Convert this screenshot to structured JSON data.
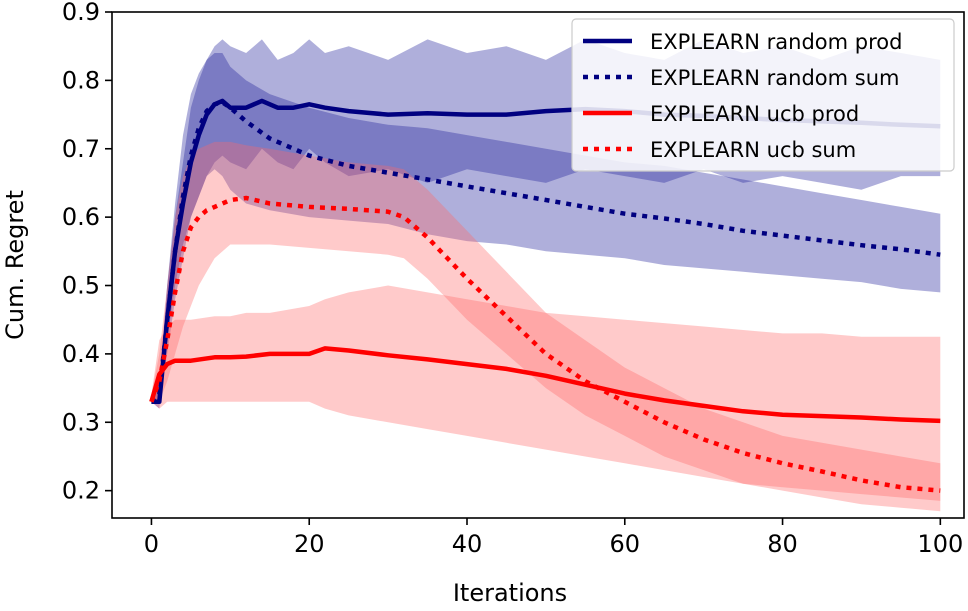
{
  "chart_data": {
    "type": "line",
    "title": "",
    "xlabel": "Iterations",
    "ylabel": "Cum. Regret",
    "xlim": [
      -5,
      103
    ],
    "ylim": [
      0.16,
      0.9
    ],
    "xticks": [
      0,
      20,
      40,
      60,
      80,
      100
    ],
    "yticks": [
      0.2,
      0.3,
      0.4,
      0.5,
      0.6,
      0.7,
      0.8,
      0.9
    ],
    "xtick_labels": [
      "0",
      "20",
      "40",
      "60",
      "80",
      "100"
    ],
    "ytick_labels": [
      "0.2",
      "0.3",
      "0.4",
      "0.5",
      "0.6",
      "0.7",
      "0.8",
      "0.9"
    ],
    "grid": false,
    "legend_position": "top-right",
    "series": [
      {
        "name": "EXPLEARN random prod",
        "color": "#000080",
        "style": "solid",
        "band_color": "#1a1a99",
        "x": [
          0,
          1,
          2,
          3,
          4,
          5,
          6,
          7,
          8,
          9,
          10,
          12,
          14,
          16,
          18,
          20,
          22,
          25,
          30,
          35,
          40,
          45,
          50,
          55,
          60,
          65,
          70,
          75,
          80,
          85,
          90,
          95,
          100
        ],
        "y": [
          0.33,
          0.33,
          0.45,
          0.55,
          0.62,
          0.68,
          0.72,
          0.75,
          0.765,
          0.77,
          0.76,
          0.76,
          0.77,
          0.76,
          0.76,
          0.765,
          0.76,
          0.755,
          0.75,
          0.752,
          0.75,
          0.75,
          0.755,
          0.758,
          0.755,
          0.75,
          0.748,
          0.745,
          0.742,
          0.74,
          0.738,
          0.735,
          0.733
        ],
        "lower": [
          0.33,
          0.32,
          0.42,
          0.5,
          0.56,
          0.6,
          0.63,
          0.66,
          0.68,
          0.69,
          0.68,
          0.67,
          0.7,
          0.68,
          0.67,
          0.7,
          0.68,
          0.66,
          0.67,
          0.65,
          0.67,
          0.66,
          0.65,
          0.67,
          0.66,
          0.65,
          0.67,
          0.65,
          0.66,
          0.65,
          0.64,
          0.66,
          0.66
        ],
        "upper": [
          0.34,
          0.35,
          0.5,
          0.6,
          0.68,
          0.76,
          0.8,
          0.83,
          0.85,
          0.86,
          0.85,
          0.84,
          0.86,
          0.83,
          0.84,
          0.86,
          0.84,
          0.85,
          0.83,
          0.86,
          0.84,
          0.85,
          0.83,
          0.86,
          0.84,
          0.83,
          0.86,
          0.84,
          0.85,
          0.83,
          0.85,
          0.84,
          0.83
        ]
      },
      {
        "name": "EXPLEARN random sum",
        "color": "#000080",
        "style": "dotted",
        "band_color": "#1a1a99",
        "x": [
          0,
          1,
          2,
          3,
          4,
          5,
          6,
          7,
          8,
          9,
          10,
          12,
          15,
          20,
          25,
          30,
          35,
          40,
          45,
          50,
          55,
          60,
          65,
          70,
          75,
          80,
          85,
          90,
          95,
          100
        ],
        "y": [
          0.33,
          0.34,
          0.45,
          0.55,
          0.63,
          0.69,
          0.73,
          0.755,
          0.765,
          0.768,
          0.76,
          0.74,
          0.715,
          0.69,
          0.675,
          0.665,
          0.655,
          0.645,
          0.635,
          0.625,
          0.615,
          0.605,
          0.598,
          0.59,
          0.58,
          0.573,
          0.566,
          0.559,
          0.553,
          0.545
        ],
        "lower": [
          0.33,
          0.33,
          0.4,
          0.48,
          0.54,
          0.6,
          0.63,
          0.66,
          0.67,
          0.66,
          0.64,
          0.62,
          0.61,
          0.6,
          0.595,
          0.59,
          0.575,
          0.565,
          0.56,
          0.55,
          0.545,
          0.54,
          0.53,
          0.525,
          0.52,
          0.515,
          0.51,
          0.505,
          0.495,
          0.49
        ],
        "upper": [
          0.34,
          0.36,
          0.5,
          0.62,
          0.72,
          0.78,
          0.81,
          0.83,
          0.84,
          0.84,
          0.82,
          0.8,
          0.78,
          0.76,
          0.745,
          0.735,
          0.73,
          0.72,
          0.71,
          0.7,
          0.69,
          0.68,
          0.675,
          0.665,
          0.655,
          0.645,
          0.635,
          0.625,
          0.615,
          0.605
        ]
      },
      {
        "name": "EXPLEARN ucb prod",
        "color": "#ff0000",
        "style": "solid",
        "band_color": "#ff6666",
        "x": [
          0,
          1,
          2,
          3,
          4,
          5,
          8,
          10,
          12,
          15,
          20,
          22,
          25,
          30,
          35,
          40,
          45,
          50,
          55,
          60,
          65,
          70,
          75,
          80,
          85,
          90,
          95,
          100
        ],
        "y": [
          0.33,
          0.37,
          0.385,
          0.39,
          0.39,
          0.39,
          0.395,
          0.395,
          0.396,
          0.4,
          0.4,
          0.408,
          0.405,
          0.398,
          0.392,
          0.385,
          0.378,
          0.368,
          0.355,
          0.342,
          0.332,
          0.324,
          0.316,
          0.311,
          0.309,
          0.307,
          0.304,
          0.302
        ],
        "lower": [
          0.33,
          0.32,
          0.33,
          0.33,
          0.33,
          0.33,
          0.33,
          0.33,
          0.33,
          0.33,
          0.33,
          0.32,
          0.31,
          0.3,
          0.29,
          0.28,
          0.27,
          0.26,
          0.25,
          0.24,
          0.23,
          0.22,
          0.21,
          0.205,
          0.2,
          0.195,
          0.19,
          0.185
        ],
        "upper": [
          0.34,
          0.42,
          0.44,
          0.45,
          0.45,
          0.45,
          0.455,
          0.455,
          0.46,
          0.46,
          0.47,
          0.48,
          0.49,
          0.5,
          0.49,
          0.48,
          0.47,
          0.46,
          0.455,
          0.45,
          0.445,
          0.44,
          0.435,
          0.43,
          0.43,
          0.425,
          0.425,
          0.425
        ]
      },
      {
        "name": "EXPLEARN ucb sum",
        "color": "#ff0000",
        "style": "dotted",
        "band_color": "#ff6666",
        "x": [
          0,
          1,
          2,
          3,
          4,
          5,
          6,
          7,
          8,
          10,
          12,
          15,
          20,
          25,
          30,
          32,
          35,
          40,
          45,
          50,
          55,
          60,
          65,
          70,
          75,
          80,
          85,
          90,
          95,
          100
        ],
        "y": [
          0.33,
          0.36,
          0.42,
          0.49,
          0.55,
          0.585,
          0.6,
          0.61,
          0.615,
          0.625,
          0.628,
          0.62,
          0.615,
          0.612,
          0.608,
          0.6,
          0.57,
          0.51,
          0.455,
          0.4,
          0.36,
          0.33,
          0.3,
          0.275,
          0.255,
          0.24,
          0.228,
          0.215,
          0.205,
          0.2
        ],
        "lower": [
          0.33,
          0.33,
          0.36,
          0.4,
          0.44,
          0.47,
          0.5,
          0.52,
          0.54,
          0.56,
          0.56,
          0.56,
          0.555,
          0.55,
          0.545,
          0.54,
          0.51,
          0.45,
          0.4,
          0.35,
          0.31,
          0.28,
          0.25,
          0.23,
          0.21,
          0.2,
          0.19,
          0.18,
          0.175,
          0.17
        ],
        "upper": [
          0.34,
          0.4,
          0.5,
          0.6,
          0.66,
          0.69,
          0.7,
          0.705,
          0.71,
          0.71,
          0.705,
          0.7,
          0.69,
          0.68,
          0.675,
          0.67,
          0.64,
          0.58,
          0.52,
          0.46,
          0.42,
          0.38,
          0.35,
          0.32,
          0.3,
          0.28,
          0.27,
          0.26,
          0.25,
          0.24
        ]
      }
    ]
  }
}
